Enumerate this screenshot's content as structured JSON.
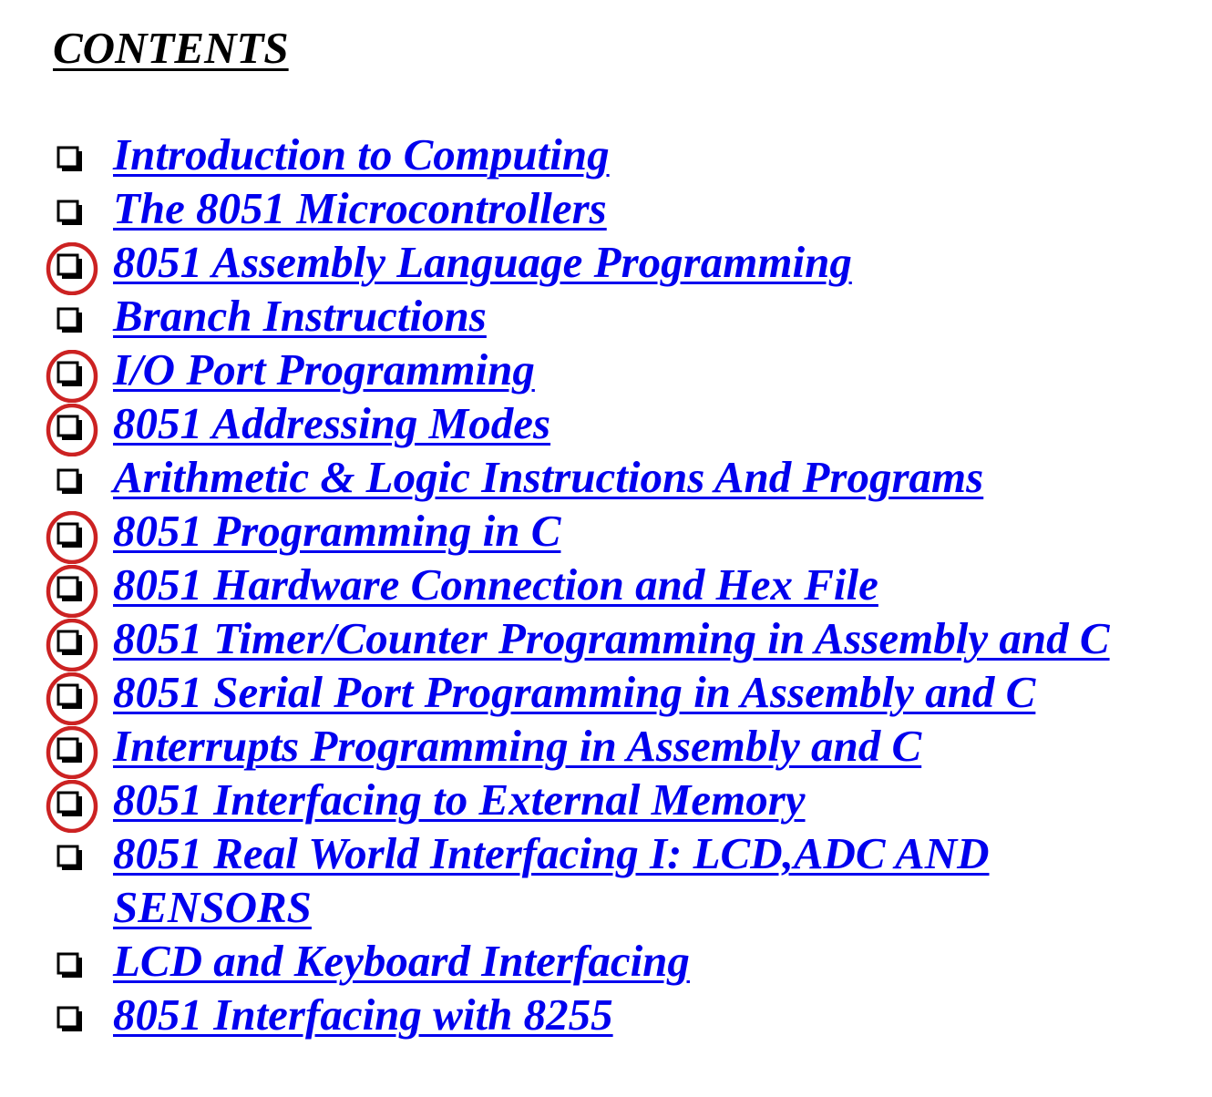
{
  "heading": "CONTENTS",
  "colors": {
    "link": "#0000ee",
    "heading": "#000000",
    "checkbox": "#000000",
    "mark_circle": "#cc2222"
  },
  "icons": {
    "bullet": "checkbox-icon",
    "mark": "red-circle-mark"
  },
  "toc": [
    {
      "title": "Introduction to Computing",
      "circled": false
    },
    {
      "title": "The 8051 Microcontrollers",
      "circled": false
    },
    {
      "title": "8051 Assembly Language Programming",
      "circled": true
    },
    {
      "title": "Branch Instructions",
      "circled": false
    },
    {
      "title": "I/O Port Programming",
      "circled": true
    },
    {
      "title": "8051 Addressing Modes",
      "circled": true
    },
    {
      "title": "Arithmetic & Logic Instructions And Programs",
      "circled": false
    },
    {
      "title": "8051 Programming in C",
      "circled": true
    },
    {
      "title": "8051 Hardware Connection and Hex File",
      "circled": true
    },
    {
      "title": "8051 Timer/Counter Programming in Assembly and C",
      "circled": true
    },
    {
      "title": "8051 Serial Port Programming in Assembly and C",
      "circled": true
    },
    {
      "title": "Interrupts Programming in Assembly and C",
      "circled": true
    },
    {
      "title": "8051 Interfacing to External Memory",
      "circled": true
    },
    {
      "title": "8051 Real World Interfacing I: LCD,ADC AND SENSORS",
      "circled": false
    },
    {
      "title": "LCD and Keyboard Interfacing",
      "circled": false
    },
    {
      "title": "8051 Interfacing with 8255",
      "circled": false
    }
  ]
}
